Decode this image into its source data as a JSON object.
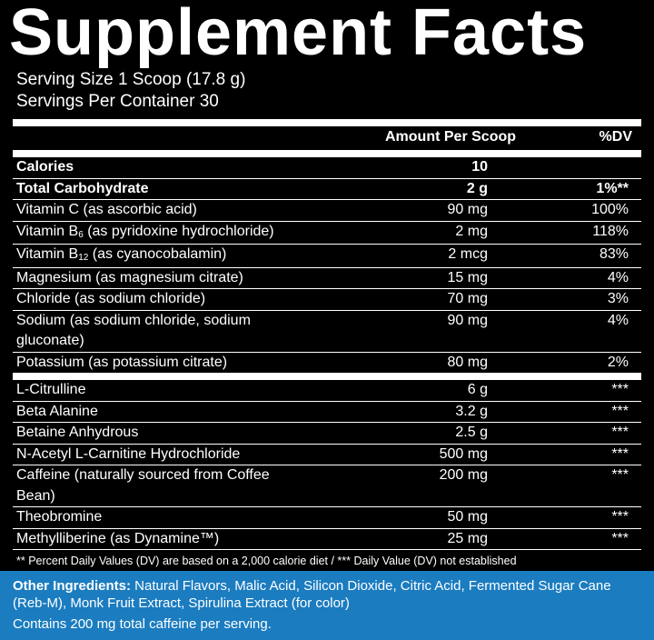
{
  "header": {
    "title": "Supplement Facts",
    "serving_size": "Serving Size 1 Scoop (17.8 g)",
    "servings_per_container": "Servings Per Container 30"
  },
  "columns": {
    "amount": "Amount Per Scoop",
    "dv": "%DV"
  },
  "sections": [
    {
      "rows": [
        {
          "name": "Calories",
          "amount": "10",
          "bold": true
        },
        {
          "name": "Total Carbohydrate",
          "amount": "2 g",
          "dv": "1%**",
          "bold": true
        },
        {
          "name": "Vitamin C (as ascorbic acid)",
          "amount": "90 mg",
          "dv": "100%"
        },
        {
          "name": "Vitamin B",
          "sub": "6",
          "name_rest": " (as pyridoxine hydrochloride)",
          "amount": "2 mg",
          "dv": "118%"
        },
        {
          "name": "Vitamin B",
          "sub": "12",
          "name_rest": " (as cyanocobalamin)",
          "amount": "2 mcg",
          "dv": "83%"
        },
        {
          "name": "Magnesium (as magnesium citrate)",
          "amount": "15 mg",
          "dv": "4%"
        },
        {
          "name": "Chloride (as sodium chloride)",
          "amount": "70 mg",
          "dv": "3%"
        },
        {
          "name": "Sodium (as sodium chloride, sodium gluconate)",
          "amount": "90 mg",
          "dv": "4%"
        },
        {
          "name": "Potassium (as potassium citrate)",
          "amount": "80 mg",
          "dv": "2%"
        }
      ]
    },
    {
      "rows": [
        {
          "name": "L-Citrulline",
          "amount": "6 g",
          "dv": "***"
        },
        {
          "name": "Beta Alanine",
          "amount": "3.2 g",
          "dv": "***"
        },
        {
          "name": "Betaine Anhydrous",
          "amount": "2.5 g",
          "dv": "***"
        },
        {
          "name": "N-Acetyl L-Carnitine Hydrochloride",
          "amount": "500 mg",
          "dv": "***"
        },
        {
          "name": "Caffeine (naturally sourced from Coffee Bean)",
          "amount": "200 mg",
          "dv": "***"
        },
        {
          "name": "Theobromine",
          "amount": "50 mg",
          "dv": "***"
        },
        {
          "name": "Methylliberine (as Dynamine™)",
          "amount": "25 mg",
          "dv": "***"
        }
      ]
    }
  ],
  "footnote": "** Percent Daily Values (DV) are based on a 2,000 calorie diet / *** Daily Value (DV) not established",
  "other_ingredients": {
    "label": "Other Ingredients:",
    "text": " Natural Flavors, Malic Acid, Silicon Dioxide, Citric Acid, Fermented Sugar Cane (Reb-M), Monk Fruit Extract, Spirulina Extract (for color)"
  },
  "caffeine_statement": "Contains 200 mg total caffeine per serving."
}
